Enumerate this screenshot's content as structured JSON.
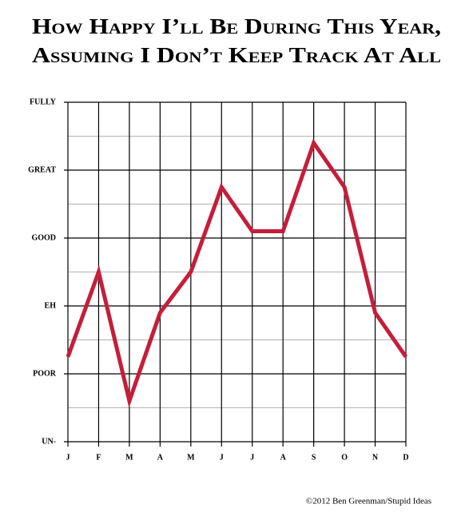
{
  "chart_data": {
    "type": "line",
    "title": [
      "How Happy I’ll Be During This Year,",
      "Assuming I Don’t Keep Track At All"
    ],
    "categories": [
      "J",
      "F",
      "M",
      "A",
      "M",
      "J",
      "J",
      "A",
      "S",
      "O",
      "N",
      "D"
    ],
    "series": [
      {
        "color": "#c41e3a",
        "values": [
          1.25,
          2.5,
          0.6,
          1.9,
          2.5,
          3.75,
          3.1,
          3.1,
          4.4,
          3.75,
          1.9,
          1.25
        ]
      }
    ],
    "ylim": [
      0,
      5
    ],
    "yticks": [
      {
        "value": 0,
        "label": "UN-"
      },
      {
        "value": 1,
        "label": "POOR"
      },
      {
        "value": 2,
        "label": "EH"
      },
      {
        "value": 3,
        "label": "GOOD"
      },
      {
        "value": 4,
        "label": "GREAT"
      },
      {
        "value": 5,
        "label": "FULLY"
      }
    ],
    "minor_yticks": [
      0.5,
      1.5,
      2.5,
      3.5,
      4.5
    ],
    "grid": true,
    "credit": "©2012 Ben Greenman/Stupid Ideas"
  }
}
